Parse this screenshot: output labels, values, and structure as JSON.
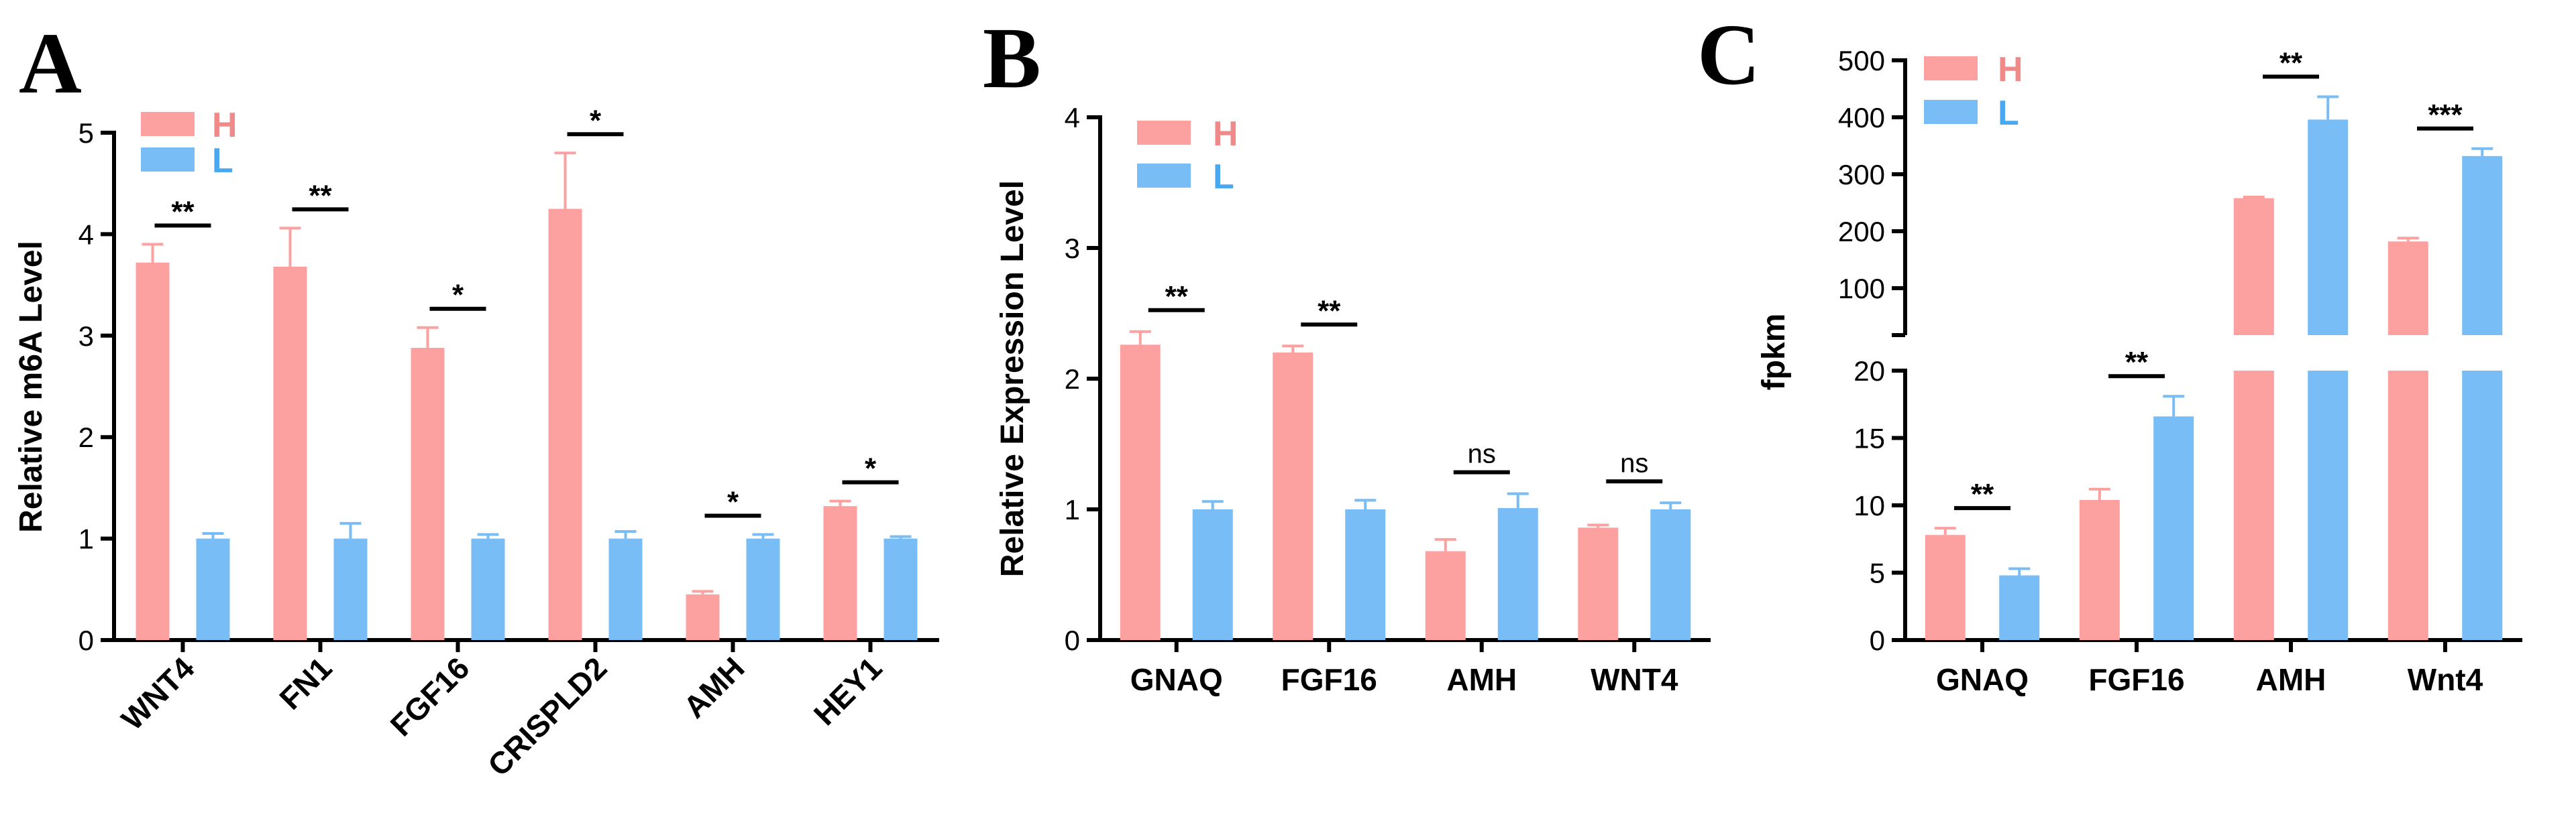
{
  "colors": {
    "H": "#FCA1A0",
    "L": "#79BDF7",
    "axis": "#000000",
    "H_text": "#F08A8A",
    "L_text": "#4AA8F0"
  },
  "legend": {
    "H": "H",
    "L": "L"
  },
  "chart_data": [
    {
      "panel": "A",
      "type": "bar",
      "ylabel": "Relative m6A Level",
      "ylim": [
        0,
        5
      ],
      "yticks": [
        "0",
        "1",
        "2",
        "3",
        "4",
        "5"
      ],
      "categories": [
        "WNT4",
        "FN1",
        "FGF16",
        "CRISPLD2",
        "AMH",
        "HEY1"
      ],
      "series": [
        {
          "name": "H",
          "values": [
            3.72,
            3.68,
            2.88,
            4.25,
            0.45,
            1.32
          ],
          "errors": [
            0.18,
            0.38,
            0.2,
            0.55,
            0.03,
            0.05
          ]
        },
        {
          "name": "L",
          "values": [
            1.0,
            1.0,
            1.0,
            1.0,
            1.0,
            1.0
          ],
          "errors": [
            0.05,
            0.15,
            0.04,
            0.07,
            0.04,
            0.02
          ]
        }
      ],
      "significance": [
        "**",
        "**",
        "*",
        "*",
        "*",
        "*"
      ]
    },
    {
      "panel": "B",
      "type": "bar",
      "ylabel": "Relative Expression Level",
      "ylim": [
        0,
        4
      ],
      "yticks": [
        "0",
        "1",
        "2",
        "3",
        "4"
      ],
      "categories": [
        "GNAQ",
        "FGF16",
        "AMH",
        "WNT4"
      ],
      "series": [
        {
          "name": "H",
          "values": [
            2.26,
            2.2,
            0.68,
            0.86
          ],
          "errors": [
            0.1,
            0.05,
            0.09,
            0.02
          ]
        },
        {
          "name": "L",
          "values": [
            1.0,
            1.0,
            1.01,
            1.0
          ],
          "errors": [
            0.06,
            0.07,
            0.11,
            0.05
          ]
        }
      ],
      "significance": [
        "**",
        "**",
        "ns",
        "ns"
      ]
    },
    {
      "panel": "C",
      "type": "bar",
      "ylabel": "fpkm",
      "ylim_lower": [
        0,
        20
      ],
      "ylim_upper": [
        20,
        500
      ],
      "yticks_lower": [
        "0",
        "5",
        "10",
        "15",
        "20"
      ],
      "yticks_upper": [
        "100",
        "200",
        "300",
        "400",
        "500"
      ],
      "categories": [
        "GNAQ",
        "FGF16",
        "AMH",
        "Wnt4"
      ],
      "series": [
        {
          "name": "H",
          "values": [
            7.8,
            10.4,
            258,
            182
          ],
          "errors": [
            0.5,
            0.8,
            2,
            6
          ]
        },
        {
          "name": "L",
          "values": [
            4.8,
            16.6,
            396,
            332
          ],
          "errors": [
            0.5,
            1.5,
            40,
            13
          ]
        }
      ],
      "significance": [
        "**",
        "**",
        "**",
        "***"
      ]
    }
  ]
}
